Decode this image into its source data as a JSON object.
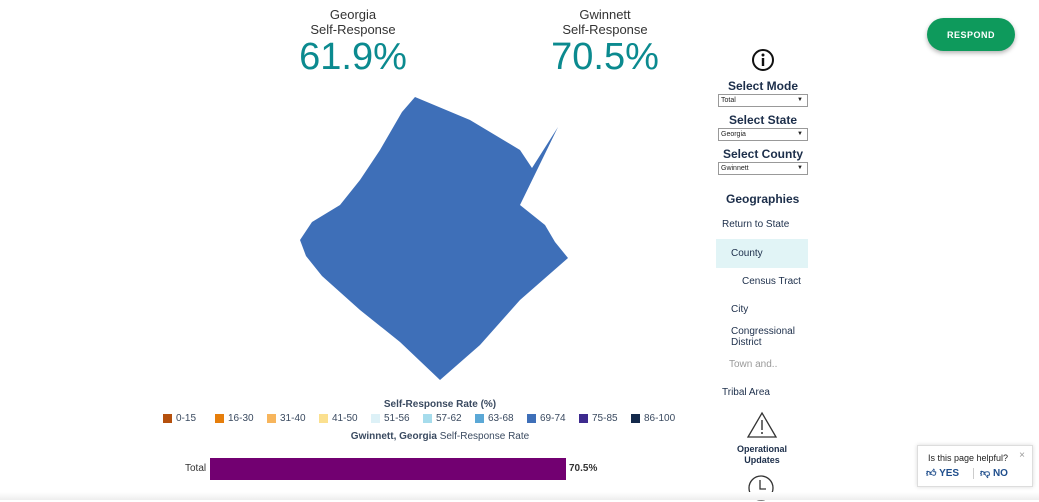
{
  "stats": [
    {
      "label1": "Georgia",
      "label2": "Self-Response",
      "value": "61.9%"
    },
    {
      "label1": "Gwinnett",
      "label2": "Self-Response",
      "value": "70.5%"
    }
  ],
  "respond_label": "RESPOND",
  "side": {
    "mode_label": "Select Mode",
    "mode_value": "Total",
    "state_label": "Select State",
    "state_value": "Georgia",
    "county_label": "Select County",
    "county_value": "Gwinnett",
    "geographies_label": "Geographies",
    "geos": [
      "Return to State",
      "County",
      "Census Tract",
      "City",
      "Congressional District",
      "Town and..",
      "Tribal Area"
    ],
    "operational": "Operational Updates"
  },
  "legend": {
    "title": "Self-Response Rate (%)",
    "items": [
      {
        "label": "0-15",
        "color": "#b5500d"
      },
      {
        "label": "16-30",
        "color": "#e67e0b"
      },
      {
        "label": "31-40",
        "color": "#f7b55c"
      },
      {
        "label": "41-50",
        "color": "#fbe08f"
      },
      {
        "label": "51-56",
        "color": "#ddf1f7"
      },
      {
        "label": "57-62",
        "color": "#a6dcec"
      },
      {
        "label": "63-68",
        "color": "#5ba8d6"
      },
      {
        "label": "69-74",
        "color": "#3e6fb8"
      },
      {
        "label": "75-85",
        "color": "#3d2a8e"
      },
      {
        "label": "86-100",
        "color": "#13294b"
      }
    ]
  },
  "subtitle_bold": "Gwinnett, Georgia",
  "subtitle_rest": " Self-Response Rate",
  "bar": {
    "label": "Total",
    "value": "70.5%",
    "color": "#720071"
  },
  "map_color": "#3e6fb8",
  "help": {
    "question": "Is this page helpful?",
    "yes": "YES",
    "no": "NO"
  }
}
